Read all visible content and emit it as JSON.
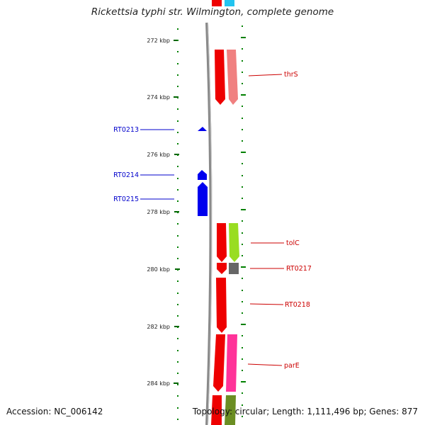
{
  "title": "Rickettsia typhi str. Wilmington, complete genome",
  "footer": {
    "accession": "Accession: NC_006142",
    "summary": "Topology: circular; Length: 1,111,496 bp; Genes: 877"
  },
  "colors": {
    "backbone": "#888888",
    "minus_strand_label": "#0000cc",
    "plus_strand_label": "#cc0000",
    "ticks": "#008000"
  },
  "kbp_labels": [
    "272 kbp",
    "274 kbp",
    "276 kbp",
    "278 kbp",
    "280 kbp",
    "282 kbp",
    "284 kbp"
  ],
  "genes": [
    {
      "name": "RT0213",
      "strand": "minus"
    },
    {
      "name": "RT0214",
      "strand": "minus"
    },
    {
      "name": "RT0215",
      "strand": "minus"
    },
    {
      "name": "thrS",
      "strand": "plus"
    },
    {
      "name": "tolC",
      "strand": "plus"
    },
    {
      "name": "RT0217",
      "strand": "plus"
    },
    {
      "name": "RT0218",
      "strand": "plus"
    },
    {
      "name": "parE",
      "strand": "plus"
    }
  ]
}
